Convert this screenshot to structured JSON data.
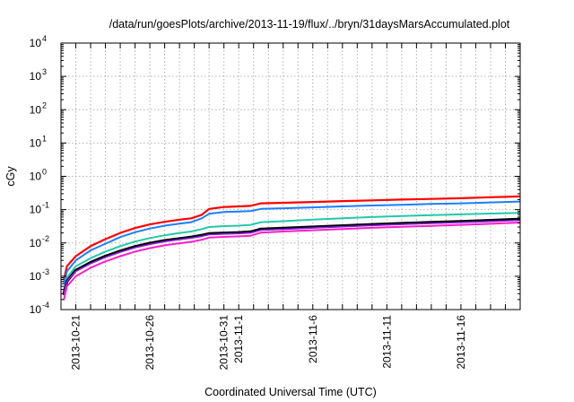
{
  "chart_data": {
    "type": "line",
    "title": "/data/run/goesPlots/archive/2013-11-19/flux/../bryn/31daysMarsAccumulated.plot",
    "xlabel": "Coordinated Universal Time (UTC)",
    "ylabel": "cGy",
    "yscale": "log",
    "ylim": [
      0.0001,
      10000
    ],
    "xlim_days": [
      -1,
      30
    ],
    "x_origin": "2013-10-21",
    "grid": true,
    "y_ticks": [
      {
        "base": "10",
        "exp": "-4",
        "value": 0.0001
      },
      {
        "base": "10",
        "exp": "-3",
        "value": 0.001
      },
      {
        "base": "10",
        "exp": "-2",
        "value": 0.01
      },
      {
        "base": "10",
        "exp": "-1",
        "value": 0.1
      },
      {
        "base": "10",
        "exp": "0",
        "value": 1
      },
      {
        "base": "10",
        "exp": "1",
        "value": 10
      },
      {
        "base": "10",
        "exp": "2",
        "value": 100
      },
      {
        "base": "10",
        "exp": "3",
        "value": 1000
      },
      {
        "base": "10",
        "exp": "4",
        "value": 10000
      }
    ],
    "x_ticks": [
      {
        "label": "2013-10-21",
        "day": 0
      },
      {
        "label": "2013-10-26",
        "day": 5
      },
      {
        "label": "2013-10-31",
        "day": 10
      },
      {
        "label": "2013-11-1",
        "day": 11
      },
      {
        "label": "2013-11-6",
        "day": 16
      },
      {
        "label": "2013-11-11",
        "day": 21
      },
      {
        "label": "2013-11-16",
        "day": 26
      }
    ],
    "x_grid_days": [
      0,
      5,
      10,
      11,
      16,
      21,
      26
    ],
    "x": [
      -0.8,
      -0.6,
      0,
      1,
      2,
      3,
      4,
      5,
      6,
      7,
      7.8,
      8.5,
      9,
      10,
      11,
      11.8,
      12.5,
      14,
      16,
      18,
      20,
      22,
      24,
      26,
      28,
      30
    ],
    "series": [
      {
        "color": "#ff0000",
        "width": 2.2,
        "values": [
          0.0008,
          0.002,
          0.004,
          0.008,
          0.013,
          0.02,
          0.028,
          0.036,
          0.043,
          0.05,
          0.055,
          0.07,
          0.105,
          0.12,
          0.125,
          0.13,
          0.155,
          0.16,
          0.17,
          0.18,
          0.19,
          0.2,
          0.21,
          0.22,
          0.235,
          0.25
        ]
      },
      {
        "color": "#1a7fff",
        "width": 2.0,
        "values": [
          0.0006,
          0.0014,
          0.003,
          0.006,
          0.0095,
          0.015,
          0.021,
          0.027,
          0.033,
          0.038,
          0.042,
          0.055,
          0.075,
          0.085,
          0.088,
          0.09,
          0.105,
          0.11,
          0.117,
          0.125,
          0.133,
          0.14,
          0.148,
          0.155,
          0.165,
          0.175
        ]
      },
      {
        "color": "#22c8a8",
        "width": 2.0,
        "values": [
          0.0004,
          0.0009,
          0.002,
          0.0035,
          0.0055,
          0.008,
          0.011,
          0.014,
          0.017,
          0.02,
          0.022,
          0.026,
          0.03,
          0.032,
          0.033,
          0.035,
          0.042,
          0.045,
          0.05,
          0.055,
          0.06,
          0.064,
          0.068,
          0.072,
          0.076,
          0.08
        ]
      },
      {
        "color": "#000000",
        "width": 3.2,
        "values": [
          0.0003,
          0.0007,
          0.0015,
          0.0026,
          0.004,
          0.0057,
          0.0078,
          0.0098,
          0.0118,
          0.0135,
          0.015,
          0.017,
          0.019,
          0.0198,
          0.0205,
          0.0215,
          0.026,
          0.0275,
          0.03,
          0.0328,
          0.0358,
          0.0385,
          0.0413,
          0.0442,
          0.0475,
          0.052
        ]
      },
      {
        "color": "#8a1fe0",
        "width": 1.6,
        "values": [
          0.0003,
          0.0007,
          0.0014,
          0.0024,
          0.0037,
          0.0053,
          0.0072,
          0.0091,
          0.011,
          0.0126,
          0.014,
          0.0158,
          0.0177,
          0.0185,
          0.0191,
          0.02,
          0.0242,
          0.0256,
          0.028,
          0.0306,
          0.0334,
          0.0359,
          0.0385,
          0.0413,
          0.0443,
          0.048
        ]
      },
      {
        "color": "#ff1fc8",
        "width": 2.0,
        "values": [
          0.0002,
          0.0005,
          0.001,
          0.0018,
          0.0028,
          0.004,
          0.0055,
          0.007,
          0.0085,
          0.0098,
          0.0108,
          0.0125,
          0.0145,
          0.0152,
          0.0158,
          0.0165,
          0.0205,
          0.022,
          0.024,
          0.0262,
          0.0285,
          0.0305,
          0.0325,
          0.0348,
          0.0375,
          0.041
        ]
      }
    ]
  }
}
